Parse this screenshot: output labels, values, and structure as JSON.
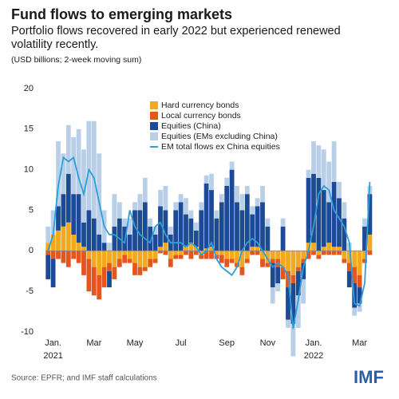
{
  "chart_data": {
    "type": "bar",
    "title": "Fund flows to emerging markets",
    "subtitle": "Portfolio flows recovered in early 2022 but experienced renewed volatility recently.",
    "note": "(USD billions; 2-week moving sum)",
    "source": "Source: EPFR; and IMF staff calculations",
    "logo": "IMF",
    "categories": [
      null,
      "Jan. 2021",
      null,
      null,
      null,
      null,
      null,
      null,
      null,
      "Mar",
      null,
      null,
      null,
      null,
      null,
      null,
      null,
      "May",
      null,
      null,
      null,
      null,
      null,
      null,
      null,
      null,
      "Jul",
      null,
      null,
      null,
      null,
      null,
      null,
      null,
      null,
      "Sep",
      null,
      null,
      null,
      null,
      null,
      null,
      null,
      "Nov",
      null,
      null,
      null,
      null,
      null,
      null,
      null,
      null,
      "Jan. 2022",
      null,
      null,
      null,
      null,
      null,
      null,
      null,
      null,
      "Mar",
      null,
      null
    ],
    "ylim": [
      -10,
      20
    ],
    "yticks": [
      20,
      15,
      10,
      5,
      0,
      -5,
      -10
    ],
    "legend": "upper-center",
    "series": [
      {
        "name": "Hard currency bonds",
        "type": "bar",
        "color": "#f2a91d",
        "values": [
          1,
          2,
          2.5,
          3,
          3.5,
          2,
          1,
          0.5,
          -1,
          -2,
          -3,
          -2,
          -1.5,
          -2,
          -1,
          -0.5,
          -1,
          -1.5,
          -2,
          -2,
          -1,
          -1,
          0.5,
          1,
          -1,
          -0.5,
          -0.5,
          0.5,
          1,
          0.5,
          -0.5,
          0.3,
          0.5,
          -0.5,
          -0.5,
          -1,
          -1,
          -1.5,
          -2,
          -1,
          0.5,
          0.5,
          -1,
          -1.5,
          -1,
          -1,
          -2,
          -2.5,
          -3,
          -2,
          -1,
          1,
          1,
          -0.5,
          0.5,
          1,
          0.5,
          0.5,
          -1,
          -1.5,
          -2,
          -3,
          -1,
          2
        ]
      },
      {
        "name": "Local currency bonds",
        "type": "bar",
        "color": "#e5561e",
        "values": [
          -0.5,
          -1,
          -1,
          -1.5,
          -2,
          -1,
          -1.5,
          -3,
          -4,
          -3.5,
          -3,
          -2.5,
          -1,
          -1.5,
          -1,
          -1,
          -0.5,
          -1.5,
          -1,
          -0.5,
          -1,
          -0.5,
          -0.3,
          -0.5,
          -1,
          -0.5,
          -0.5,
          -0.5,
          -1,
          -0.5,
          -0.5,
          -1,
          -1,
          -0.5,
          -1,
          -1,
          -0.5,
          -0.5,
          -1,
          -0.5,
          -0.5,
          -0.5,
          -1,
          -0.5,
          -0.5,
          -1,
          -1.5,
          -2,
          -1,
          -0.5,
          -0.5,
          -1,
          -0.5,
          -0.5,
          -0.5,
          -0.5,
          -0.5,
          -0.5,
          -0.5,
          -1,
          -2,
          -1.5,
          -0.5,
          -0.5
        ]
      },
      {
        "name": "Equities (China)",
        "type": "bar",
        "color": "#1c4a96",
        "values": [
          -3,
          -3.5,
          3,
          4,
          6,
          5,
          6,
          3,
          5,
          4,
          2,
          1,
          -2,
          3,
          4,
          3,
          2,
          5,
          5,
          6,
          3,
          2,
          5,
          4,
          2,
          5,
          6,
          4,
          3,
          2,
          5,
          8,
          7,
          4,
          6,
          8,
          10,
          6,
          5,
          7,
          4,
          5,
          6,
          3,
          -3,
          -2,
          3,
          -4,
          -5,
          -3,
          -2,
          8,
          8.5,
          9,
          7,
          5,
          8,
          6,
          4,
          -2,
          -3,
          -2,
          3,
          5
        ]
      },
      {
        "name": "Equities (EMs excluding China)",
        "type": "bar",
        "color": "#b9cfe8",
        "values": [
          2,
          3,
          8,
          5,
          6,
          7,
          8,
          9,
          11,
          12,
          10,
          4,
          1,
          4,
          2,
          1,
          2,
          1,
          2,
          3,
          1,
          1,
          2,
          3,
          1,
          1,
          1,
          2,
          1,
          1,
          1,
          1,
          2,
          1,
          1,
          1,
          1,
          2,
          2,
          1,
          1,
          1,
          2,
          1,
          -2,
          -1,
          1,
          -1,
          -4,
          -4,
          -3,
          1,
          4,
          4,
          5,
          5,
          5,
          2,
          2,
          1,
          -1,
          -1,
          1,
          1
        ]
      },
      {
        "name": "EM total flows ex China equities",
        "type": "line",
        "color": "#2b9fd9",
        "values": [
          0,
          2,
          8,
          11.5,
          11,
          11.5,
          9,
          7,
          10,
          9,
          6,
          3,
          2,
          2,
          1.5,
          1,
          5,
          3,
          2,
          1.5,
          1,
          3,
          3.5,
          2,
          1,
          1,
          1,
          0.5,
          1,
          0.5,
          -0.5,
          0,
          1,
          -1,
          -2,
          -2.5,
          -3,
          -2,
          0,
          1,
          1.5,
          1,
          0,
          -1,
          -2,
          -1.5,
          -2,
          -3,
          -9.6,
          -6,
          -2,
          0,
          3,
          7,
          8,
          7.5,
          5,
          4,
          3,
          1,
          -6.5,
          -6.8,
          -4,
          8.5
        ]
      }
    ]
  }
}
